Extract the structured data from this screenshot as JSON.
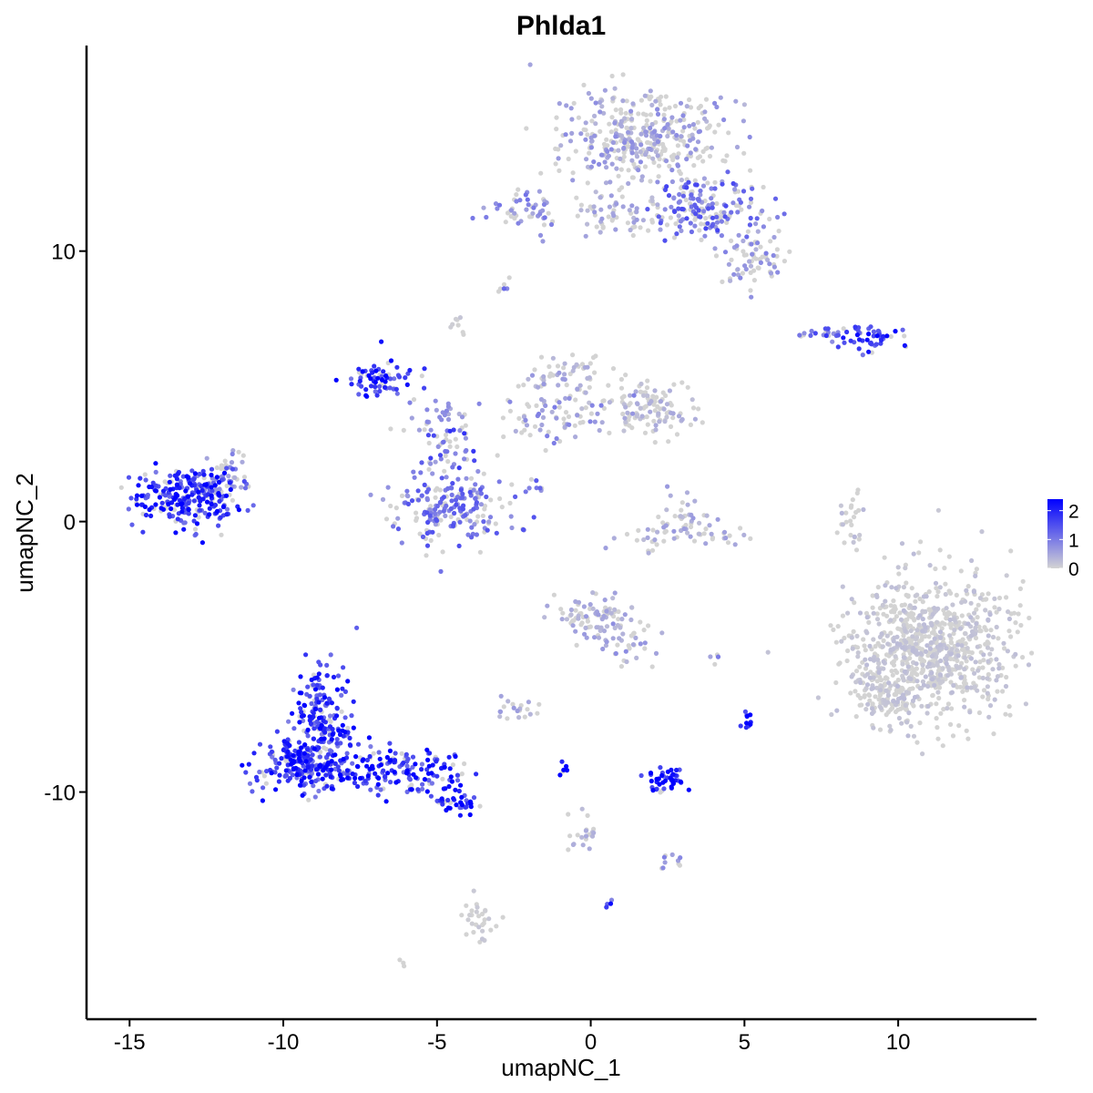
{
  "chart_data": {
    "type": "scatter",
    "title": "Phlda1",
    "xlabel": "umapNC_1",
    "ylabel": "umapNC_2",
    "xlim": [
      -16.4,
      14.5
    ],
    "ylim": [
      -18.4,
      17.6
    ],
    "xticks": [
      -15,
      -10,
      -5,
      0,
      5,
      10
    ],
    "xtick_labels": [
      "-15",
      "-10",
      "-5",
      "0",
      "5",
      "10"
    ],
    "yticks": [
      -10,
      0,
      10
    ],
    "ytick_labels": [
      "-10",
      "0",
      "10"
    ],
    "grid": false,
    "legend": {
      "position": "right",
      "type": "colorbar",
      "min": 0,
      "max": 2.4,
      "ticks": [
        0,
        1,
        2
      ],
      "tick_labels": [
        "0",
        "1",
        "2"
      ],
      "low_color": "#d3d3d3",
      "high_color": "#0000ff"
    },
    "clusters": [
      {
        "x": 1.8,
        "y": 14.2,
        "sx": 1.5,
        "sy": 1.0,
        "n": 380,
        "expr": 0.25
      },
      {
        "x": 3.8,
        "y": 11.5,
        "sx": 1.2,
        "sy": 0.7,
        "n": 170,
        "expr": 0.5
      },
      {
        "x": 5.3,
        "y": 9.7,
        "sx": 0.6,
        "sy": 0.6,
        "n": 70,
        "expr": 0.3
      },
      {
        "x": 0.9,
        "y": 11.5,
        "sx": 1.0,
        "sy": 0.6,
        "n": 70,
        "expr": 0.2
      },
      {
        "x": -2.3,
        "y": 11.6,
        "sx": 0.7,
        "sy": 0.45,
        "n": 50,
        "expr": 0.35
      },
      {
        "x": 9.3,
        "y": 6.8,
        "sx": 0.6,
        "sy": 0.25,
        "n": 45,
        "expr": 0.75
      },
      {
        "x": 7.7,
        "y": 6.9,
        "sx": 0.7,
        "sy": 0.2,
        "n": 25,
        "expr": 0.55
      },
      {
        "x": -6.8,
        "y": 5.3,
        "sx": 0.7,
        "sy": 0.45,
        "n": 70,
        "expr": 0.8
      },
      {
        "x": 1.8,
        "y": 4.2,
        "sx": 0.9,
        "sy": 0.6,
        "n": 120,
        "expr": 0.15
      },
      {
        "x": -0.8,
        "y": 5.4,
        "sx": 0.7,
        "sy": 0.5,
        "n": 60,
        "expr": 0.2
      },
      {
        "x": -1.0,
        "y": 3.8,
        "sx": 1.5,
        "sy": 0.6,
        "n": 70,
        "expr": 0.3
      },
      {
        "x": -4.6,
        "y": 0.6,
        "sx": 1.2,
        "sy": 0.8,
        "n": 210,
        "expr": 0.45
      },
      {
        "x": -4.4,
        "y": 2.6,
        "sx": 0.5,
        "sy": 0.8,
        "n": 40,
        "expr": 0.55
      },
      {
        "x": -5.3,
        "y": 3.6,
        "sx": 0.6,
        "sy": 0.5,
        "n": 20,
        "expr": 0.3
      },
      {
        "x": -13.2,
        "y": 0.9,
        "sx": 1.0,
        "sy": 0.6,
        "n": 260,
        "expr": 0.8
      },
      {
        "x": -11.9,
        "y": 1.7,
        "sx": 0.5,
        "sy": 0.5,
        "n": 40,
        "expr": 0.3
      },
      {
        "x": 3.1,
        "y": -0.5,
        "sx": 1.2,
        "sy": 0.4,
        "n": 60,
        "expr": 0.2
      },
      {
        "x": 2.9,
        "y": 0.4,
        "sx": 0.5,
        "sy": 0.5,
        "n": 20,
        "expr": 0.2
      },
      {
        "x": 8.4,
        "y": 0.1,
        "sx": 0.25,
        "sy": 0.7,
        "n": 25,
        "expr": 0.1
      },
      {
        "x": 11.0,
        "y": -4.7,
        "sx": 1.6,
        "sy": 1.6,
        "n": 850,
        "expr": 0.08
      },
      {
        "x": 9.6,
        "y": -6.5,
        "sx": 0.7,
        "sy": 0.5,
        "n": 90,
        "expr": 0.08
      },
      {
        "x": 0.1,
        "y": -3.5,
        "sx": 0.8,
        "sy": 0.5,
        "n": 80,
        "expr": 0.2
      },
      {
        "x": 1.1,
        "y": -4.3,
        "sx": 0.5,
        "sy": 0.5,
        "n": 40,
        "expr": 0.25
      },
      {
        "x": -2.5,
        "y": -6.9,
        "sx": 0.4,
        "sy": 0.25,
        "n": 20,
        "expr": 0.2
      },
      {
        "x": -8.8,
        "y": -7.0,
        "sx": 0.6,
        "sy": 1.0,
        "n": 160,
        "expr": 0.75
      },
      {
        "x": -9.2,
        "y": -9.0,
        "sx": 0.9,
        "sy": 0.6,
        "n": 260,
        "expr": 0.8
      },
      {
        "x": -6.3,
        "y": -9.2,
        "sx": 1.2,
        "sy": 0.5,
        "n": 150,
        "expr": 0.85
      },
      {
        "x": -4.4,
        "y": -10.3,
        "sx": 0.5,
        "sy": 0.3,
        "n": 40,
        "expr": 0.9
      },
      {
        "x": 2.4,
        "y": -9.6,
        "sx": 0.4,
        "sy": 0.3,
        "n": 45,
        "expr": 0.95
      },
      {
        "x": 5.1,
        "y": -7.5,
        "sx": 0.1,
        "sy": 0.3,
        "n": 10,
        "expr": 1.0
      },
      {
        "x": 2.7,
        "y": -12.6,
        "sx": 0.35,
        "sy": 0.15,
        "n": 10,
        "expr": 0.4
      },
      {
        "x": -0.3,
        "y": -11.5,
        "sx": 0.3,
        "sy": 0.6,
        "n": 20,
        "expr": 0.15
      },
      {
        "x": -3.6,
        "y": -14.8,
        "sx": 0.3,
        "sy": 0.5,
        "n": 30,
        "expr": 0.05
      },
      {
        "x": -4.8,
        "y": 4.0,
        "sx": 0.3,
        "sy": 0.3,
        "n": 8,
        "expr": 0.3
      },
      {
        "x": -4.3,
        "y": 7.3,
        "sx": 0.2,
        "sy": 0.2,
        "n": 8,
        "expr": 0.05
      },
      {
        "x": -2.9,
        "y": 8.7,
        "sx": 0.15,
        "sy": 0.15,
        "n": 6,
        "expr": 0.5
      },
      {
        "x": -1.8,
        "y": 1.3,
        "sx": 0.3,
        "sy": 0.3,
        "n": 8,
        "expr": 0.5
      },
      {
        "x": 4.2,
        "y": -5.0,
        "sx": 0.2,
        "sy": 0.2,
        "n": 5,
        "expr": 0.3
      },
      {
        "x": -0.9,
        "y": -9.2,
        "sx": 0.1,
        "sy": 0.15,
        "n": 6,
        "expr": 0.9
      },
      {
        "x": 0.6,
        "y": -14.1,
        "sx": 0.1,
        "sy": 0.1,
        "n": 4,
        "expr": 0.7
      },
      {
        "x": -6.1,
        "y": -16.3,
        "sx": 0.1,
        "sy": 0.1,
        "n": 3,
        "expr": 0.3
      }
    ]
  }
}
